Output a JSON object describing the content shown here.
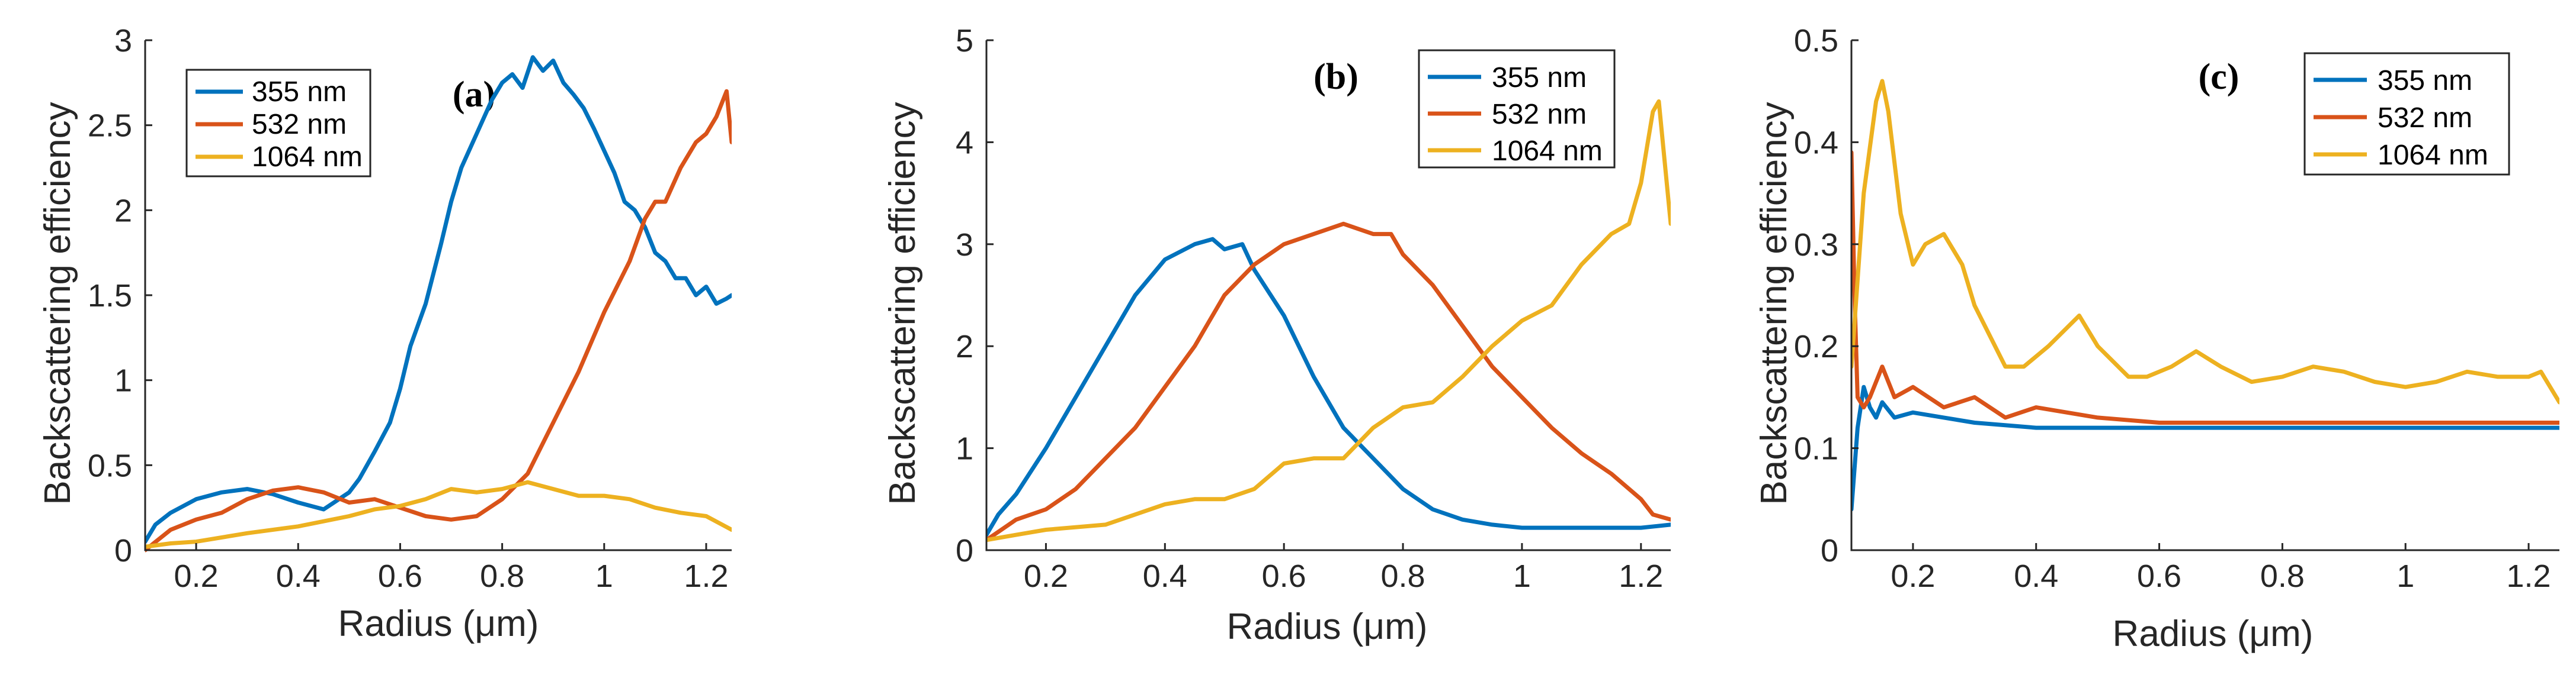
{
  "chart_data": [
    {
      "type": "line",
      "panel_label": "(a)",
      "xlabel": "Radius (μm)",
      "ylabel": "Backscattering efficiency",
      "xlim": [
        0.1,
        1.25
      ],
      "ylim": [
        0,
        3
      ],
      "xticks": [
        0.2,
        0.4,
        0.6,
        0.8,
        1,
        1.2
      ],
      "xtick_labels": [
        "0.2",
        "0.4",
        "0.6",
        "0.8",
        "1",
        "1.2"
      ],
      "yticks": [
        0,
        0.5,
        1,
        1.5,
        2,
        2.5,
        3
      ],
      "ytick_labels": [
        "0",
        "0.5",
        "1",
        "1.5",
        "2",
        "2.5",
        "3"
      ],
      "legend": {
        "entries": [
          "355 nm",
          "532 nm",
          "1064 nm"
        ],
        "position": "top-left"
      },
      "series": [
        {
          "name": "355 nm",
          "color": "#0072BD",
          "x": [
            0.1,
            0.12,
            0.15,
            0.2,
            0.25,
            0.3,
            0.35,
            0.4,
            0.45,
            0.48,
            0.5,
            0.52,
            0.55,
            0.58,
            0.6,
            0.62,
            0.65,
            0.68,
            0.7,
            0.72,
            0.75,
            0.78,
            0.8,
            0.82,
            0.84,
            0.86,
            0.88,
            0.9,
            0.92,
            0.94,
            0.96,
            0.98,
            1.0,
            1.02,
            1.04,
            1.06,
            1.08,
            1.1,
            1.12,
            1.14,
            1.16,
            1.18,
            1.2,
            1.22,
            1.24,
            1.25
          ],
          "y": [
            0.05,
            0.15,
            0.22,
            0.3,
            0.34,
            0.36,
            0.33,
            0.28,
            0.24,
            0.3,
            0.34,
            0.42,
            0.58,
            0.75,
            0.95,
            1.2,
            1.45,
            1.8,
            2.05,
            2.25,
            2.45,
            2.65,
            2.75,
            2.8,
            2.72,
            2.9,
            2.82,
            2.88,
            2.75,
            2.68,
            2.6,
            2.48,
            2.35,
            2.22,
            2.05,
            2.0,
            1.9,
            1.75,
            1.7,
            1.6,
            1.6,
            1.5,
            1.55,
            1.45,
            1.48,
            1.5
          ]
        },
        {
          "name": "532 nm",
          "color": "#D95319",
          "x": [
            0.1,
            0.15,
            0.2,
            0.25,
            0.3,
            0.35,
            0.4,
            0.45,
            0.5,
            0.55,
            0.6,
            0.65,
            0.7,
            0.75,
            0.8,
            0.85,
            0.9,
            0.95,
            1.0,
            1.05,
            1.08,
            1.1,
            1.12,
            1.15,
            1.18,
            1.2,
            1.22,
            1.24,
            1.25
          ],
          "y": [
            0.0,
            0.12,
            0.18,
            0.22,
            0.3,
            0.35,
            0.37,
            0.34,
            0.28,
            0.3,
            0.25,
            0.2,
            0.18,
            0.2,
            0.3,
            0.45,
            0.75,
            1.05,
            1.4,
            1.7,
            1.95,
            2.05,
            2.05,
            2.25,
            2.4,
            2.45,
            2.55,
            2.7,
            2.4
          ]
        },
        {
          "name": "1064 nm",
          "color": "#EDB120",
          "x": [
            0.1,
            0.15,
            0.2,
            0.3,
            0.4,
            0.5,
            0.55,
            0.6,
            0.65,
            0.7,
            0.75,
            0.8,
            0.85,
            0.9,
            0.95,
            1.0,
            1.05,
            1.1,
            1.15,
            1.2,
            1.25
          ],
          "y": [
            0.02,
            0.04,
            0.05,
            0.1,
            0.14,
            0.2,
            0.24,
            0.26,
            0.3,
            0.36,
            0.34,
            0.36,
            0.4,
            0.36,
            0.32,
            0.32,
            0.3,
            0.25,
            0.22,
            0.2,
            0.12
          ]
        }
      ]
    },
    {
      "type": "line",
      "panel_label": "(b)",
      "xlabel": "Radius (μm)",
      "ylabel": "Backscattering efficiency",
      "xlim": [
        0.1,
        1.25
      ],
      "ylim": [
        0,
        5
      ],
      "xticks": [
        0.2,
        0.4,
        0.6,
        0.8,
        1,
        1.2
      ],
      "xtick_labels": [
        "0.2",
        "0.4",
        "0.6",
        "0.8",
        "1",
        "1.2"
      ],
      "yticks": [
        0,
        1,
        2,
        3,
        4,
        5
      ],
      "ytick_labels": [
        "0",
        "1",
        "2",
        "3",
        "4",
        "5"
      ],
      "legend": {
        "entries": [
          "355 nm",
          "532 nm",
          "1064 nm"
        ],
        "position": "top-right"
      },
      "series": [
        {
          "name": "355 nm",
          "color": "#0072BD",
          "x": [
            0.1,
            0.12,
            0.15,
            0.2,
            0.25,
            0.3,
            0.35,
            0.4,
            0.45,
            0.48,
            0.5,
            0.53,
            0.55,
            0.6,
            0.65,
            0.7,
            0.75,
            0.8,
            0.85,
            0.9,
            0.95,
            1.0,
            1.05,
            1.1,
            1.15,
            1.2,
            1.25
          ],
          "y": [
            0.15,
            0.35,
            0.55,
            1.0,
            1.5,
            2.0,
            2.5,
            2.85,
            3.0,
            3.05,
            2.95,
            3.0,
            2.75,
            2.3,
            1.7,
            1.2,
            0.9,
            0.6,
            0.4,
            0.3,
            0.25,
            0.22,
            0.22,
            0.22,
            0.22,
            0.22,
            0.25
          ]
        },
        {
          "name": "532 nm",
          "color": "#D95319",
          "x": [
            0.1,
            0.15,
            0.2,
            0.25,
            0.3,
            0.35,
            0.4,
            0.45,
            0.5,
            0.55,
            0.6,
            0.65,
            0.7,
            0.75,
            0.78,
            0.8,
            0.85,
            0.9,
            0.95,
            1.0,
            1.05,
            1.1,
            1.15,
            1.2,
            1.22,
            1.25
          ],
          "y": [
            0.1,
            0.3,
            0.4,
            0.6,
            0.9,
            1.2,
            1.6,
            2.0,
            2.5,
            2.8,
            3.0,
            3.1,
            3.2,
            3.1,
            3.1,
            2.9,
            2.6,
            2.2,
            1.8,
            1.5,
            1.2,
            0.95,
            0.75,
            0.5,
            0.35,
            0.3
          ]
        },
        {
          "name": "1064 nm",
          "color": "#EDB120",
          "x": [
            0.1,
            0.15,
            0.2,
            0.3,
            0.35,
            0.4,
            0.45,
            0.5,
            0.55,
            0.6,
            0.65,
            0.7,
            0.75,
            0.8,
            0.85,
            0.9,
            0.95,
            1.0,
            1.05,
            1.1,
            1.15,
            1.18,
            1.2,
            1.22,
            1.23,
            1.25
          ],
          "y": [
            0.1,
            0.15,
            0.2,
            0.25,
            0.35,
            0.45,
            0.5,
            0.5,
            0.6,
            0.85,
            0.9,
            0.9,
            1.2,
            1.4,
            1.45,
            1.7,
            2.0,
            2.25,
            2.4,
            2.8,
            3.1,
            3.2,
            3.6,
            4.3,
            4.4,
            3.2
          ]
        }
      ]
    },
    {
      "type": "line",
      "panel_label": "(c)",
      "xlabel": "Radius (μm)",
      "ylabel": "Backscattering efficiency",
      "xlim": [
        0.1,
        1.25
      ],
      "ylim": [
        0,
        0.5
      ],
      "xticks": [
        0.2,
        0.4,
        0.6,
        0.8,
        1,
        1.2
      ],
      "xtick_labels": [
        "0.2",
        "0.4",
        "0.6",
        "0.8",
        "1",
        "1.2"
      ],
      "yticks": [
        0,
        0.1,
        0.2,
        0.3,
        0.4,
        0.5
      ],
      "ytick_labels": [
        "0",
        "0.1",
        "0.2",
        "0.3",
        "0.4",
        "0.5"
      ],
      "legend": {
        "entries": [
          "355 nm",
          "532 nm",
          "1064 nm"
        ],
        "position": "top-right"
      },
      "series": [
        {
          "name": "355 nm",
          "color": "#0072BD",
          "x": [
            0.1,
            0.11,
            0.12,
            0.13,
            0.14,
            0.15,
            0.17,
            0.2,
            0.25,
            0.3,
            0.4,
            0.5,
            0.6,
            0.8,
            1.0,
            1.2,
            1.25
          ],
          "y": [
            0.04,
            0.12,
            0.16,
            0.14,
            0.13,
            0.145,
            0.13,
            0.135,
            0.13,
            0.125,
            0.12,
            0.12,
            0.12,
            0.12,
            0.12,
            0.12,
            0.12
          ]
        },
        {
          "name": "532 nm",
          "color": "#D95319",
          "x": [
            0.1,
            0.105,
            0.11,
            0.12,
            0.13,
            0.15,
            0.17,
            0.2,
            0.25,
            0.3,
            0.35,
            0.4,
            0.5,
            0.6,
            0.7,
            0.8,
            1.0,
            1.2,
            1.25
          ],
          "y": [
            0.39,
            0.25,
            0.15,
            0.14,
            0.15,
            0.18,
            0.15,
            0.16,
            0.14,
            0.15,
            0.13,
            0.14,
            0.13,
            0.125,
            0.125,
            0.125,
            0.125,
            0.125,
            0.125
          ]
        },
        {
          "name": "1064 nm",
          "color": "#EDB120",
          "x": [
            0.1,
            0.12,
            0.14,
            0.15,
            0.16,
            0.18,
            0.2,
            0.22,
            0.25,
            0.28,
            0.3,
            0.35,
            0.38,
            0.42,
            0.47,
            0.5,
            0.55,
            0.58,
            0.62,
            0.66,
            0.7,
            0.75,
            0.8,
            0.85,
            0.9,
            0.95,
            1.0,
            1.05,
            1.1,
            1.15,
            1.2,
            1.22,
            1.25
          ],
          "y": [
            0.18,
            0.35,
            0.44,
            0.46,
            0.43,
            0.33,
            0.28,
            0.3,
            0.31,
            0.28,
            0.24,
            0.18,
            0.18,
            0.2,
            0.23,
            0.2,
            0.17,
            0.17,
            0.18,
            0.195,
            0.18,
            0.165,
            0.17,
            0.18,
            0.175,
            0.165,
            0.16,
            0.165,
            0.175,
            0.17,
            0.17,
            0.175,
            0.145
          ]
        }
      ]
    }
  ]
}
